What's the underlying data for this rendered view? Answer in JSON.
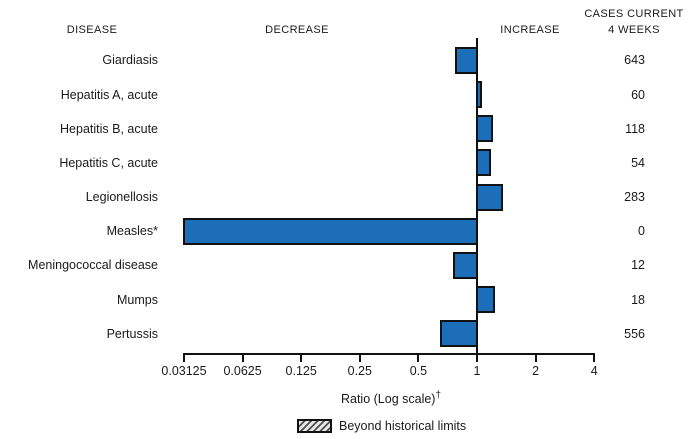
{
  "headers": {
    "disease": "DISEASE",
    "decrease": "DECREASE",
    "increase": "INCREASE",
    "cases_line1": "CASES CURRENT",
    "cases_line2": "4 WEEKS"
  },
  "chart_data": {
    "type": "bar",
    "orientation": "horizontal",
    "scale": "log2",
    "title": "",
    "xlabel": "Ratio (Log scale)",
    "xlabel_superscript": "†",
    "axis": {
      "ticks": [
        0.03125,
        0.0625,
        0.125,
        0.25,
        0.5,
        1,
        2,
        4
      ],
      "tick_labels": [
        "0.03125",
        "0.0625",
        "0.125",
        "0.25",
        "0.5",
        "1",
        "2",
        "4"
      ],
      "min": 0.03125,
      "max": 4,
      "baseline_value": 1
    },
    "rows": [
      {
        "disease": "Giardiasis",
        "ratio": 0.78,
        "direction": "decrease",
        "cases_current_4_weeks": "643",
        "beyond_historical_limits": false
      },
      {
        "disease": "Hepatitis A, acute",
        "ratio": 1.05,
        "direction": "increase",
        "cases_current_4_weeks": "60",
        "beyond_historical_limits": false
      },
      {
        "disease": "Hepatitis B, acute",
        "ratio": 1.19,
        "direction": "increase",
        "cases_current_4_weeks": "118",
        "beyond_historical_limits": false
      },
      {
        "disease": "Hepatitis C, acute",
        "ratio": 1.17,
        "direction": "increase",
        "cases_current_4_weeks": "54",
        "beyond_historical_limits": false
      },
      {
        "disease": "Legionellosis",
        "ratio": 1.34,
        "direction": "increase",
        "cases_current_4_weeks": "283",
        "beyond_historical_limits": false
      },
      {
        "disease": "Measles*",
        "ratio": 0.03125,
        "direction": "decrease",
        "cases_current_4_weeks": "0",
        "beyond_historical_limits": false
      },
      {
        "disease": "Meningococcal disease",
        "ratio": 0.76,
        "direction": "decrease",
        "cases_current_4_weeks": "12",
        "beyond_historical_limits": false
      },
      {
        "disease": "Mumps",
        "ratio": 1.22,
        "direction": "increase",
        "cases_current_4_weeks": "18",
        "beyond_historical_limits": false
      },
      {
        "disease": "Pertussis",
        "ratio": 0.65,
        "direction": "decrease",
        "cases_current_4_weeks": "556",
        "beyond_historical_limits": false
      }
    ],
    "legend": [
      {
        "label": "Beyond historical limits",
        "swatch": "hatched"
      }
    ],
    "colors": {
      "bar_fill": "#1C6EB8",
      "bar_border": "#111111",
      "axis": "#111111",
      "text": "#1A1A1A",
      "background": "#FFFFFF"
    }
  }
}
